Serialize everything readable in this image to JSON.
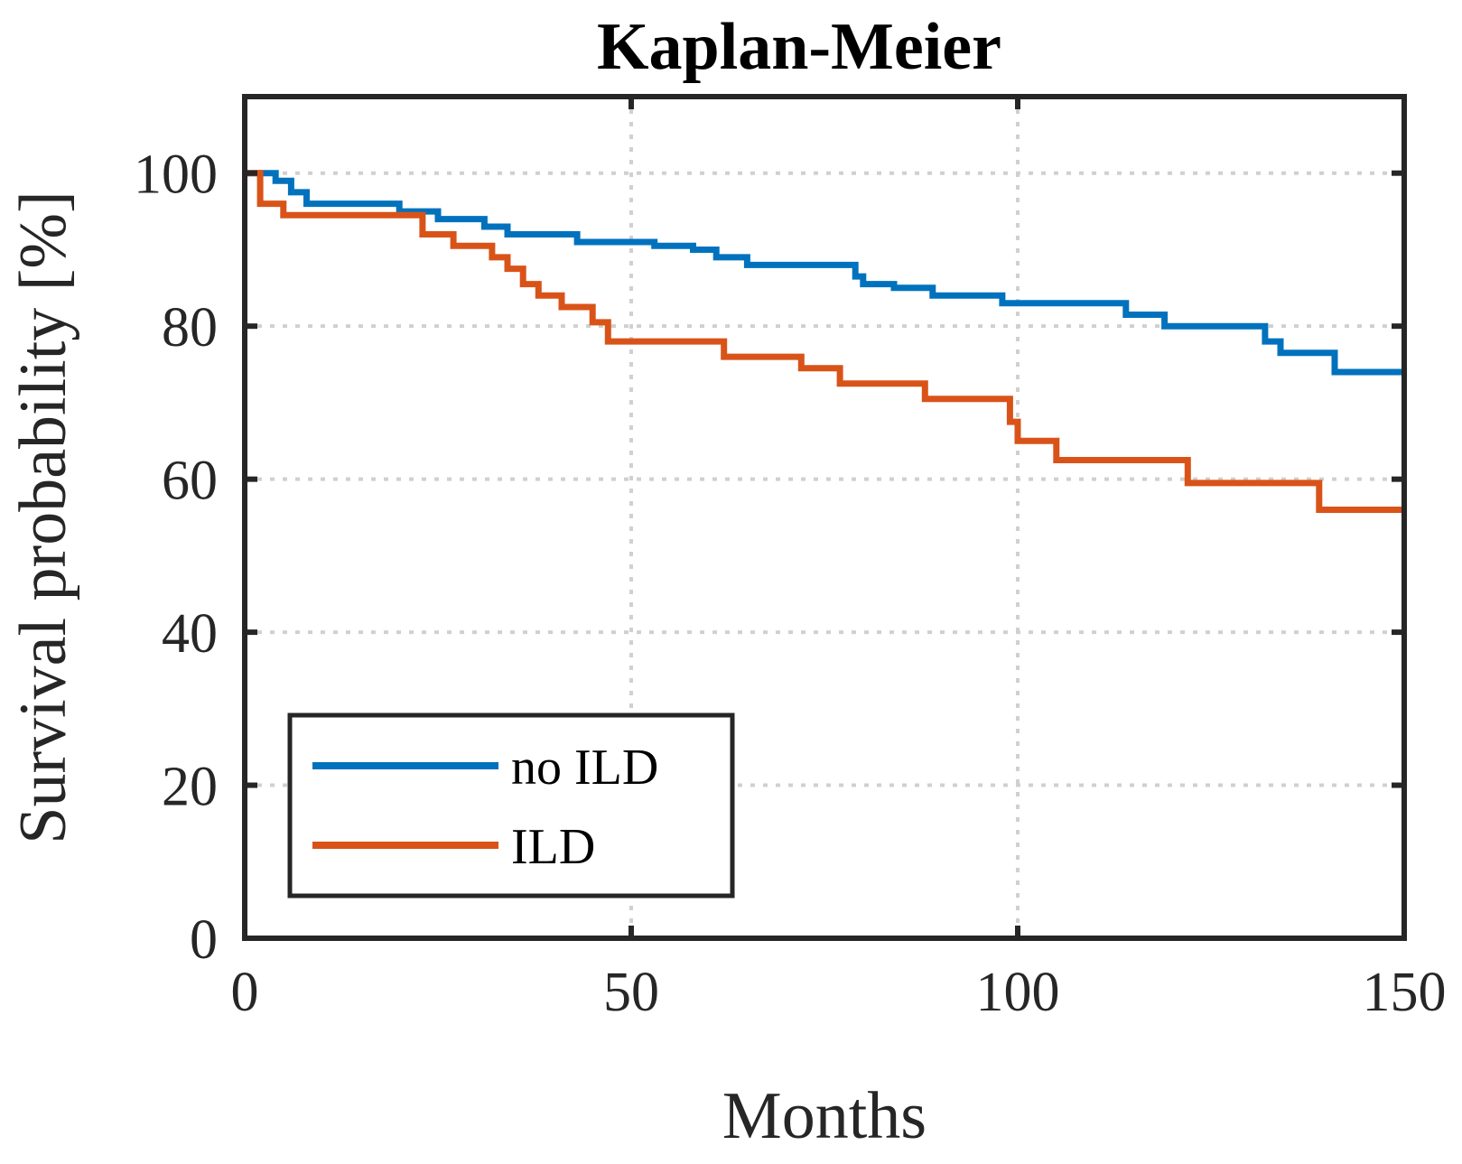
{
  "chart_data": {
    "type": "line",
    "step": true,
    "title": "Kaplan-Meier",
    "xlabel": "Months",
    "ylabel": "Survival probability [%]",
    "xlim": [
      0,
      150
    ],
    "ylim": [
      0,
      110
    ],
    "xticks": [
      0,
      50,
      100,
      150
    ],
    "yticks": [
      0,
      20,
      40,
      60,
      80,
      100
    ],
    "grid": true,
    "legend_position": "bottom-left",
    "series": [
      {
        "name": "no ILD",
        "color": "#0072BD",
        "points": [
          [
            0,
            100
          ],
          [
            3,
            100
          ],
          [
            4,
            99
          ],
          [
            6,
            97.5
          ],
          [
            8,
            96
          ],
          [
            20,
            95
          ],
          [
            25,
            94
          ],
          [
            31,
            93
          ],
          [
            34,
            92
          ],
          [
            43,
            91
          ],
          [
            53,
            90.5
          ],
          [
            58,
            90
          ],
          [
            61,
            89
          ],
          [
            65,
            88
          ],
          [
            79,
            86.5
          ],
          [
            80,
            85.5
          ],
          [
            84,
            85
          ],
          [
            89,
            84
          ],
          [
            98,
            83
          ],
          [
            114,
            81.5
          ],
          [
            119,
            80
          ],
          [
            132,
            78
          ],
          [
            134,
            76.5
          ],
          [
            141,
            74
          ],
          [
            150,
            74
          ]
        ]
      },
      {
        "name": "ILD",
        "color": "#D95319",
        "points": [
          [
            0,
            100
          ],
          [
            2,
            100
          ],
          [
            2,
            96
          ],
          [
            5,
            94.5
          ],
          [
            23,
            92
          ],
          [
            27,
            90.5
          ],
          [
            32,
            89
          ],
          [
            34,
            87.5
          ],
          [
            36,
            85.5
          ],
          [
            38,
            84
          ],
          [
            41,
            82.5
          ],
          [
            45,
            80.5
          ],
          [
            47,
            78
          ],
          [
            62,
            76
          ],
          [
            72,
            74.5
          ],
          [
            77,
            72.5
          ],
          [
            88,
            70.5
          ],
          [
            99,
            67.5
          ],
          [
            100,
            65
          ],
          [
            105,
            62.5
          ],
          [
            122,
            59.5
          ],
          [
            139,
            56
          ],
          [
            150,
            56
          ]
        ]
      }
    ]
  }
}
